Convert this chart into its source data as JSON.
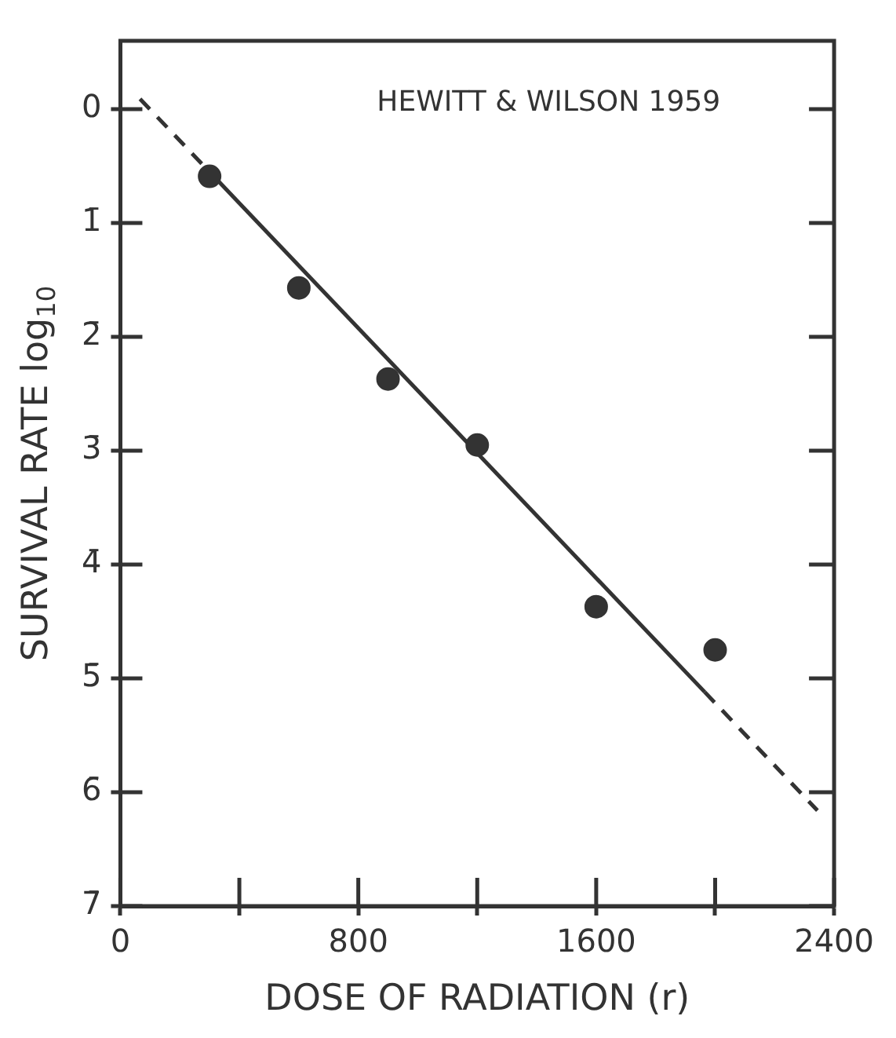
{
  "chart_data": {
    "type": "scatter",
    "xlabel": "DOSE OF RADIATION (r)",
    "ylabel": "SURVIVAL RATE log$_{10}$",
    "annotations": [
      "HEWITT & WILSON 1959"
    ],
    "xlim": [
      0,
      2400
    ],
    "xticks": [
      0,
      {
        "value": 400,
        "label": null
      },
      800,
      {
        "value": 1200,
        "label": null
      },
      1600,
      {
        "value": 2000,
        "label": null
      },
      2400
    ],
    "ylim": [
      -7,
      0.6
    ],
    "yticks": [
      {
        "value": 0,
        "label": "0"
      },
      {
        "value": -1,
        "label": "1̄"
      },
      {
        "value": -2,
        "label": "2̄"
      },
      {
        "value": -3,
        "label": "3̄"
      },
      {
        "value": -4,
        "label": "4̄"
      },
      {
        "value": -5,
        "label": "5̄"
      },
      {
        "value": -6,
        "label": "6̄"
      },
      {
        "value": -7,
        "label": "7̄"
      }
    ],
    "grid": false,
    "legend": false,
    "series": [
      {
        "type": "scatter",
        "marker": "circle",
        "color": "#333333",
        "x": [
          300,
          600,
          900,
          1200,
          1600,
          2000
        ],
        "values": [
          -0.59,
          -1.57,
          -2.37,
          -2.95,
          -4.37,
          -4.75
        ]
      },
      {
        "type": "line",
        "marker": "none",
        "line_style": "dashed",
        "color": "#333333",
        "x": [
          66,
          314
        ],
        "values": [
          0.09,
          -0.59
        ]
      },
      {
        "type": "line",
        "marker": "none",
        "line_style": "solid",
        "color": "#333333",
        "x": [
          314,
          1965
        ],
        "values": [
          -0.59,
          -5.12
        ]
      },
      {
        "type": "line",
        "marker": "none",
        "line_style": "dashed",
        "color": "#333333",
        "x": [
          1965,
          2344
        ],
        "values": [
          -5.12,
          -6.16
        ]
      }
    ]
  }
}
